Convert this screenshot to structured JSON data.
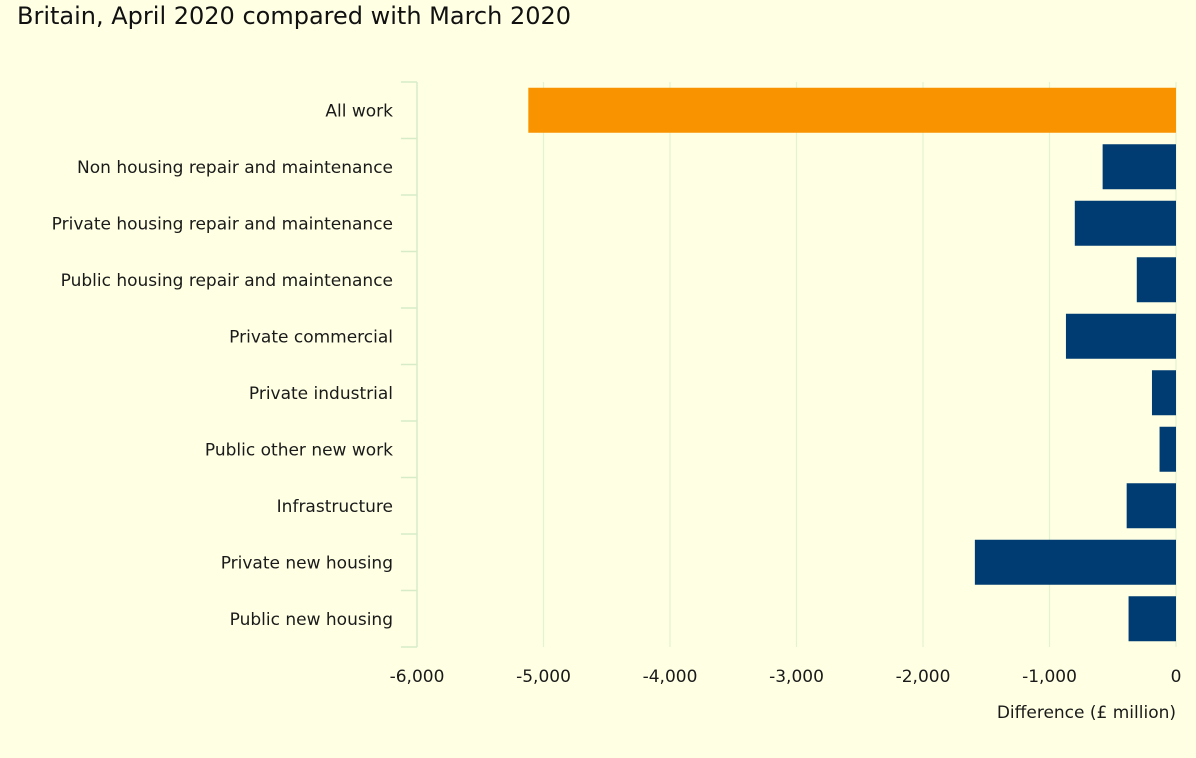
{
  "chart_data": {
    "type": "bar",
    "orientation": "horizontal",
    "title": "Britain, April 2020 compared with March 2020",
    "xlabel": "Difference (£ million)",
    "ylabel": "",
    "xlim": [
      -6000,
      0
    ],
    "x_ticks": [
      -6000,
      -5000,
      -4000,
      -3000,
      -2000,
      -1000,
      0
    ],
    "x_tick_labels": [
      "-6,000",
      "-5,000",
      "-4,000",
      "-3,000",
      "-2,000",
      "-1,000",
      "0"
    ],
    "grid": "vertical",
    "categories": [
      "All work",
      "Non housing repair and maintenance",
      "Private housing repair and maintenance",
      "Public housing repair and maintenance",
      "Private commercial",
      "Private industrial",
      "Public other new work",
      "Infrastructure",
      "Private new housing",
      "Public new housing"
    ],
    "values": [
      -5120,
      -580,
      -800,
      -310,
      -870,
      -190,
      -130,
      -390,
      -1590,
      -375
    ],
    "colors": [
      "#f99300",
      "#003c71",
      "#003c71",
      "#003c71",
      "#003c71",
      "#003c71",
      "#003c71",
      "#003c71",
      "#003c71",
      "#003c71"
    ],
    "gridline_color": "#e3f2cf",
    "axis_line_color": "#d6ecc9"
  }
}
